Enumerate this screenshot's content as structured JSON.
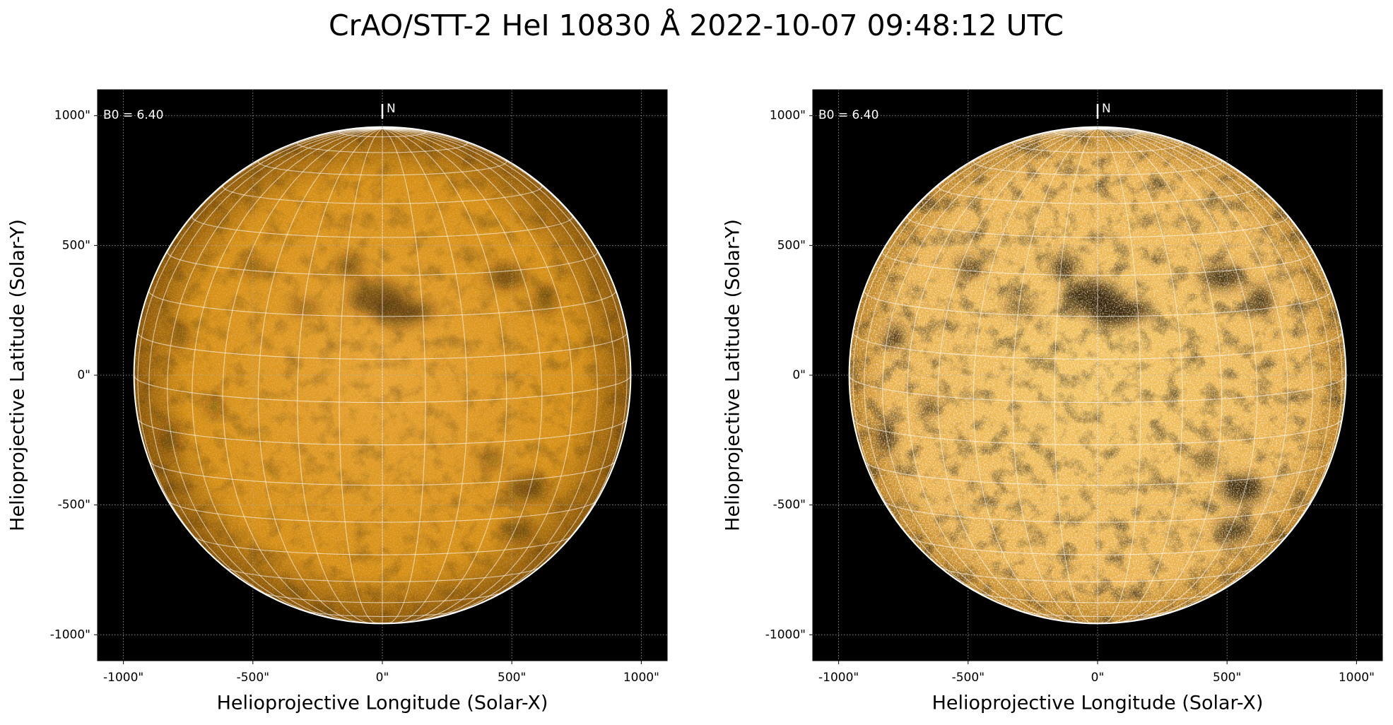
{
  "title": "CrAO/STT-2 HeI 10830 Å 2022-10-07 09:48:12 UTC",
  "chart_data": [
    {
      "type": "image",
      "xlabel": "Helioprojective Longitude (Solar-X)",
      "ylabel": "Helioprojective Latitude (Solar-Y)",
      "xlim": [
        -1100,
        1100
      ],
      "ylim": [
        -1100,
        1100
      ],
      "xticks": [
        {
          "value": -1000,
          "label": "-1000\""
        },
        {
          "value": -500,
          "label": "-500\""
        },
        {
          "value": 0,
          "label": "0\""
        },
        {
          "value": 500,
          "label": "500\""
        },
        {
          "value": 1000,
          "label": "1000\""
        }
      ],
      "yticks": [
        {
          "value": -1000,
          "label": "-1000\""
        },
        {
          "value": -500,
          "label": "-500\""
        },
        {
          "value": 0,
          "label": "0\""
        },
        {
          "value": 500,
          "label": "500\""
        },
        {
          "value": 1000,
          "label": "1000\""
        }
      ],
      "grid": true,
      "annotations": [
        "B0 = 6.40",
        "N"
      ]
    },
    {
      "type": "image",
      "xlabel": "Helioprojective Longitude (Solar-X)",
      "ylabel": "Helioprojective Latitude (Solar-Y)",
      "xlim": [
        -1100,
        1100
      ],
      "ylim": [
        -1100,
        1100
      ],
      "xticks": [
        {
          "value": -1000,
          "label": "-1000\""
        },
        {
          "value": -500,
          "label": "-500\""
        },
        {
          "value": 0,
          "label": "0\""
        },
        {
          "value": 500,
          "label": "500\""
        },
        {
          "value": 1000,
          "label": "1000\""
        }
      ],
      "yticks": [
        {
          "value": -1000,
          "label": "-1000\""
        },
        {
          "value": -500,
          "label": "-500\""
        },
        {
          "value": 0,
          "label": "0\""
        },
        {
          "value": 500,
          "label": "500\""
        },
        {
          "value": 1000,
          "label": "1000\""
        }
      ],
      "grid": true,
      "annotations": [
        "B0 = 6.40",
        "N"
      ]
    }
  ]
}
